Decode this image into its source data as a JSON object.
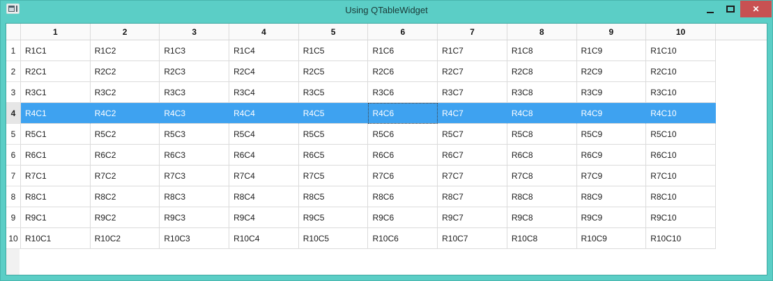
{
  "window": {
    "title": "Using QTableWidget",
    "icons": {
      "app": "window-glyph",
      "minimize": "dash",
      "maximize": "square-outline",
      "close": "✕"
    },
    "colors": {
      "titlebar_teal": "#5BCEC6",
      "close_red": "#C85152",
      "selection_blue": "#3EA2F0",
      "gridline": "#DBDBDB",
      "header_bg": "#FAFAFA"
    }
  },
  "table": {
    "column_headers": [
      "1",
      "2",
      "3",
      "4",
      "5",
      "6",
      "7",
      "8",
      "9",
      "10"
    ],
    "row_headers": [
      "1",
      "2",
      "3",
      "4",
      "5",
      "6",
      "7",
      "8",
      "9",
      "10"
    ],
    "cells": [
      [
        "R1C1",
        "R1C2",
        "R1C3",
        "R1C4",
        "R1C5",
        "R1C6",
        "R1C7",
        "R1C8",
        "R1C9",
        "R1C10"
      ],
      [
        "R2C1",
        "R2C2",
        "R2C3",
        "R2C4",
        "R2C5",
        "R2C6",
        "R2C7",
        "R2C8",
        "R2C9",
        "R2C10"
      ],
      [
        "R3C1",
        "R3C2",
        "R3C3",
        "R3C4",
        "R3C5",
        "R3C6",
        "R3C7",
        "R3C8",
        "R3C9",
        "R3C10"
      ],
      [
        "R4C1",
        "R4C2",
        "R4C3",
        "R4C4",
        "R4C5",
        "R4C6",
        "R4C7",
        "R4C8",
        "R4C9",
        "R4C10"
      ],
      [
        "R5C1",
        "R5C2",
        "R5C3",
        "R5C4",
        "R5C5",
        "R5C6",
        "R5C7",
        "R5C8",
        "R5C9",
        "R5C10"
      ],
      [
        "R6C1",
        "R6C2",
        "R6C3",
        "R6C4",
        "R6C5",
        "R6C6",
        "R6C7",
        "R6C8",
        "R6C9",
        "R6C10"
      ],
      [
        "R7C1",
        "R7C2",
        "R7C3",
        "R7C4",
        "R7C5",
        "R7C6",
        "R7C7",
        "R7C8",
        "R7C9",
        "R7C10"
      ],
      [
        "R8C1",
        "R8C2",
        "R8C3",
        "R8C4",
        "R8C5",
        "R8C6",
        "R8C7",
        "R8C8",
        "R8C9",
        "R8C10"
      ],
      [
        "R9C1",
        "R9C2",
        "R9C3",
        "R9C4",
        "R9C5",
        "R9C6",
        "R9C7",
        "R9C8",
        "R9C9",
        "R9C10"
      ],
      [
        "R10C1",
        "R10C2",
        "R10C3",
        "R10C4",
        "R10C5",
        "R10C6",
        "R10C7",
        "R10C8",
        "R10C9",
        "R10C10"
      ]
    ],
    "selection": {
      "selected_row": 4,
      "focused_cell": {
        "row": 4,
        "col": 6
      }
    }
  }
}
